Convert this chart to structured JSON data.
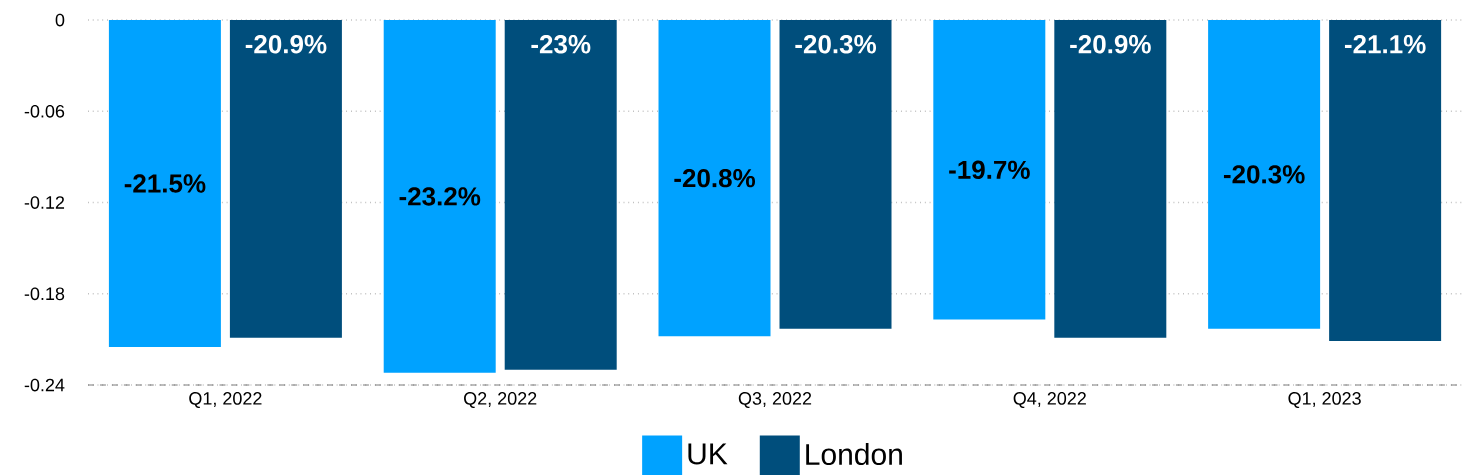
{
  "chart_data": {
    "type": "bar",
    "categories": [
      "Q1, 2022",
      "Q2, 2022",
      "Q3, 2022",
      "Q4, 2022",
      "Q1, 2023"
    ],
    "series": [
      {
        "name": "UK",
        "color": "#00a2ff",
        "values": [
          -0.215,
          -0.232,
          -0.208,
          -0.197,
          -0.203
        ],
        "value_labels": [
          "-21.5%",
          "-23.2%",
          "-20.8%",
          "-19.7%",
          "-20.3%"
        ]
      },
      {
        "name": "London",
        "color": "#004e7c",
        "values": [
          -0.209,
          -0.23,
          -0.203,
          -0.209,
          -0.211
        ],
        "value_labels": [
          "-20.9%",
          "-23%",
          "-20.3%",
          "-20.9%",
          "-21.1%"
        ]
      }
    ],
    "ylim": [
      -0.24,
      0
    ],
    "yticks": [
      0,
      -0.06,
      -0.12,
      -0.18,
      -0.24
    ],
    "grid": "y",
    "legend": "bottom"
  }
}
